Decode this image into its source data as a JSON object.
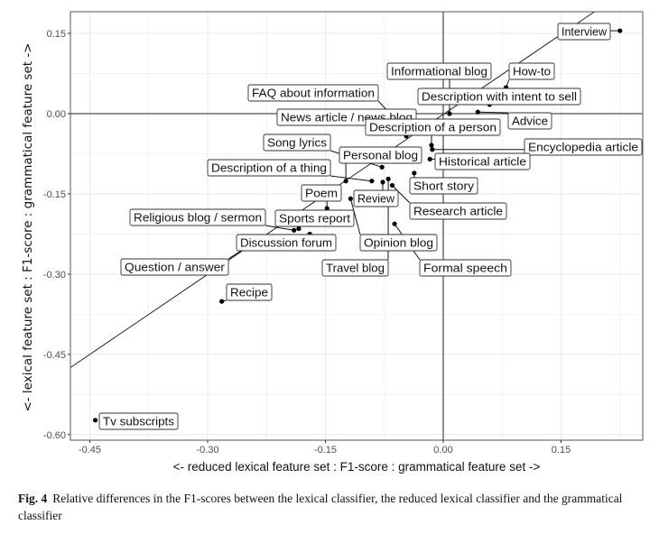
{
  "chart_data": {
    "type": "scatter",
    "title": "",
    "xlabel": "<- reduced lexical feature set : F1-score : grammatical feature set ->",
    "ylabel": "<- lexical feature set : F1-score : grammatical feature set ->",
    "xlim": [
      -0.475,
      0.255
    ],
    "ylim": [
      -0.61,
      0.19
    ],
    "xticks": [
      "-0.45",
      "-0.30",
      "-0.15",
      "0.00",
      "0.15"
    ],
    "xtick_values": [
      -0.45,
      -0.3,
      -0.15,
      0.0,
      0.15
    ],
    "yticks": [
      "0.15",
      "0.00",
      "-0.15",
      "-0.30",
      "-0.45",
      "-0.60"
    ],
    "ytick_values": [
      0.15,
      0.0,
      -0.15,
      -0.3,
      -0.45,
      -0.6
    ],
    "grid": true,
    "reference_lines": [
      "x = 0",
      "y = 0",
      "y = x"
    ],
    "points": [
      {
        "label": "Interview",
        "x": 0.225,
        "y": 0.155
      },
      {
        "label": "Informational blog",
        "x": 0.008,
        "y": 0.0
      },
      {
        "label": "How-to",
        "x": 0.08,
        "y": 0.049
      },
      {
        "label": "FAQ about information",
        "x": -0.045,
        "y": -0.035
      },
      {
        "label": "Description with intent to sell",
        "x": 0.059,
        "y": 0.017
      },
      {
        "label": "News article / news blog",
        "x": -0.047,
        "y": -0.042
      },
      {
        "label": "Advice",
        "x": 0.044,
        "y": 0.003
      },
      {
        "label": "Description of a person",
        "x": -0.015,
        "y": -0.059
      },
      {
        "label": "Song lyrics",
        "x": -0.078,
        "y": -0.1
      },
      {
        "label": "Encyclopedia article",
        "x": -0.014,
        "y": -0.067
      },
      {
        "label": "Personal blog",
        "x": -0.124,
        "y": -0.126
      },
      {
        "label": "Historical article",
        "x": -0.017,
        "y": -0.085
      },
      {
        "label": "Description of a thing",
        "x": -0.091,
        "y": -0.126
      },
      {
        "label": "Short story",
        "x": -0.037,
        "y": -0.111
      },
      {
        "label": "Poem",
        "x": -0.148,
        "y": -0.177
      },
      {
        "label": "Review",
        "x": -0.077,
        "y": -0.128
      },
      {
        "label": "Research article",
        "x": -0.065,
        "y": -0.134
      },
      {
        "label": "Religious blog / sermon",
        "x": -0.19,
        "y": -0.218
      },
      {
        "label": "Sports report",
        "x": -0.184,
        "y": -0.215
      },
      {
        "label": "Discussion forum",
        "x": -0.17,
        "y": -0.225
      },
      {
        "label": "Opinion blog",
        "x": -0.118,
        "y": -0.159
      },
      {
        "label": "Question / answer",
        "x": -0.24,
        "y": -0.24
      },
      {
        "label": "Travel blog",
        "x": -0.07,
        "y": -0.122
      },
      {
        "label": "Formal speech",
        "x": -0.062,
        "y": -0.206
      },
      {
        "label": "Recipe",
        "x": -0.282,
        "y": -0.351
      },
      {
        "label": "Tv subscripts",
        "x": -0.443,
        "y": -0.573
      }
    ]
  },
  "caption": {
    "fig_label": "Fig. 4",
    "text": "Relative differences in the F1-scores between the lexical classifier, the reduced lexical classifier and the grammatical classifier"
  }
}
